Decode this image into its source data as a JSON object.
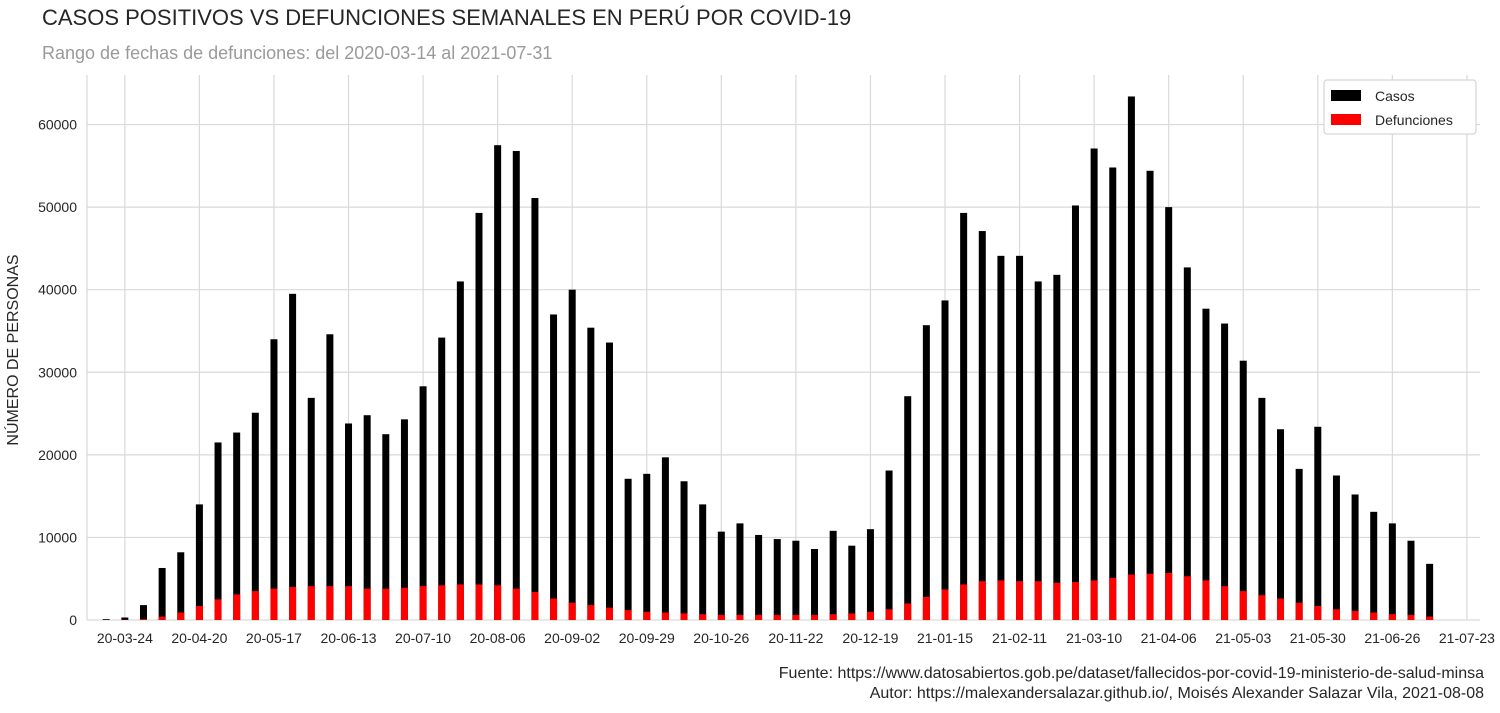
{
  "chart_data": {
    "type": "bar",
    "title": "CASOS POSITIVOS VS DEFUNCIONES SEMANALES EN PERÚ POR COVID-19",
    "subtitle": "Rango de fechas de defunciones: del 2020-03-14 al 2021-07-31",
    "ylabel": "NÚMERO DE PERSONAS",
    "xlabel": "",
    "ylim": [
      0,
      66000
    ],
    "yticks": [
      0,
      10000,
      20000,
      30000,
      40000,
      50000,
      60000
    ],
    "grid": true,
    "legend_position": "top-right",
    "x_tick_labels": [
      "20-03-24",
      "20-04-20",
      "20-05-17",
      "20-06-13",
      "20-07-10",
      "20-08-06",
      "20-09-02",
      "20-09-29",
      "20-10-26",
      "20-11-22",
      "20-12-19",
      "21-01-15",
      "21-02-11",
      "21-03-10",
      "21-04-06",
      "21-05-03",
      "21-05-30",
      "21-06-26",
      "21-07-23"
    ],
    "series": [
      {
        "name": "Casos",
        "color": "#000000",
        "values": [
          100,
          300,
          1800,
          6300,
          8200,
          14000,
          21500,
          22700,
          25100,
          34000,
          39500,
          26900,
          34600,
          23800,
          24800,
          22500,
          24300,
          28300,
          34200,
          41000,
          49300,
          57500,
          56800,
          51100,
          37000,
          40000,
          35400,
          33600,
          17100,
          17700,
          19700,
          16800,
          14000,
          10700,
          11700,
          10300,
          9800,
          9600,
          8600,
          10800,
          9000,
          11000,
          18100,
          27100,
          35700,
          38700,
          49300,
          47100,
          44100,
          44100,
          41000,
          41800,
          50200,
          57100,
          54800,
          63400,
          54400,
          50000,
          42700,
          37700,
          35900,
          31400,
          26900,
          23100,
          18300,
          23400,
          17500,
          15200,
          13100,
          11700,
          9600,
          6800
        ]
      },
      {
        "name": "Defunciones",
        "color": "#ff0000",
        "values": [
          10,
          30,
          100,
          400,
          900,
          1700,
          2500,
          3100,
          3500,
          3800,
          4000,
          4100,
          4100,
          4100,
          3800,
          3800,
          3900,
          4100,
          4200,
          4300,
          4300,
          4200,
          3800,
          3400,
          2600,
          2100,
          1800,
          1500,
          1200,
          1000,
          900,
          800,
          700,
          600,
          600,
          600,
          600,
          600,
          600,
          700,
          800,
          1000,
          1300,
          2000,
          2800,
          3700,
          4300,
          4700,
          4800,
          4700,
          4700,
          4500,
          4600,
          4800,
          5100,
          5500,
          5600,
          5700,
          5300,
          4800,
          4100,
          3500,
          3000,
          2600,
          2100,
          1700,
          1300,
          1100,
          900,
          700,
          600,
          400
        ]
      }
    ]
  },
  "footer": {
    "source": "Fuente: https://www.datosabiertos.gob.pe/dataset/fallecidos-por-covid-19-ministerio-de-salud-minsa",
    "author": "Autor: https://malexandersalazar.github.io/, Moisés Alexander Salazar Vila, 2021-08-08"
  }
}
